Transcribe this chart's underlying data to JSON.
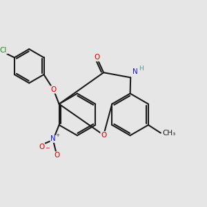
{
  "bg_color": "#e6e6e6",
  "bond_color": "#1a1a1a",
  "O_color": "#cc0000",
  "N_color": "#1a1acc",
  "N_H_color": "#4a9a9a",
  "Cl_color": "#228B22",
  "lw": 1.5,
  "fs": 7.5,
  "figsize": [
    3.0,
    3.0
  ],
  "dpi": 100,
  "xlim": [
    0,
    10
  ],
  "ylim": [
    0,
    10
  ],
  "r_main": 1.05,
  "r_cl": 0.85
}
